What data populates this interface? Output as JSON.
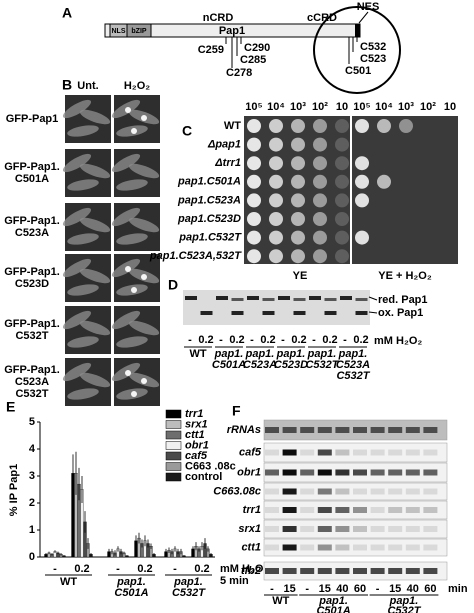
{
  "panel_labels": [
    "A",
    "B",
    "C",
    "D",
    "E",
    "F"
  ],
  "panel_a": {
    "protein": "Pap1",
    "nls": "NLS",
    "bzip": "bZIP",
    "ncrd": "nCRD",
    "ccrd": "cCRD",
    "nes": "NES",
    "cys_n": [
      "C259",
      "C290",
      "C285",
      "C278"
    ],
    "cys_c": [
      "C532",
      "C523",
      "C501"
    ]
  },
  "panel_b": {
    "columns": [
      "Unt.",
      "H₂O₂"
    ],
    "rows": [
      [
        "GFP-Pap1"
      ],
      [
        "GFP-Pap1.",
        "C501A"
      ],
      [
        "GFP-Pap1.",
        "C523A"
      ],
      [
        "GFP-Pap1.",
        "C523D"
      ],
      [
        "GFP-Pap1.",
        "C532T"
      ],
      [
        "GFP-Pap1.",
        "C523A",
        "C532T"
      ]
    ]
  },
  "panel_c": {
    "dilutions": [
      "10⁵",
      "10⁴",
      "10³",
      "10²",
      "10"
    ],
    "strains": [
      "WT",
      "Δpap1",
      "Δtrr1",
      "pap1.C501A",
      "pap1.C523A",
      "pap1.C523D",
      "pap1.C532T",
      "pap1.C523A,532T"
    ],
    "media": [
      "YE",
      "YE + H₂O₂"
    ]
  },
  "panel_d": {
    "bands": [
      "red. Pap1",
      "ox. Pap1"
    ],
    "doses": [
      "-",
      "0.2"
    ],
    "unit": "mM H₂O₂",
    "strains": [
      [
        "WT"
      ],
      [
        "pap1.",
        "C501A"
      ],
      [
        "pap1.",
        "C523A"
      ],
      [
        "pap1.",
        "C523D"
      ],
      [
        "pap1.",
        "C532T"
      ],
      [
        "pap1.",
        "C523A",
        "C532T"
      ]
    ]
  },
  "panel_f": {
    "rows": [
      "rRNAs",
      "caf5",
      "obr1",
      "C663.08c",
      "trr1",
      "srx1",
      "ctt1",
      "tfb2"
    ],
    "times": [
      "-",
      "15",
      "-",
      "15",
      "40",
      "60",
      "-",
      "15",
      "40",
      "60"
    ],
    "unit": "min",
    "strains": [
      [
        "WT"
      ],
      [
        "pap1.",
        "C501A"
      ],
      [
        "pap1.",
        "C532T"
      ]
    ]
  },
  "chart_data": {
    "type": "bar",
    "ylabel": "% IP Pap1",
    "categories": [
      "-",
      "0.2",
      "-",
      "0.2",
      "-",
      "0.2"
    ],
    "groups": [
      [
        "WT"
      ],
      [
        "pap1.",
        "C501A"
      ],
      [
        "pap1.",
        "C532T"
      ]
    ],
    "x_note": [
      "mM H₂O₂",
      "5 min"
    ],
    "ylim": [
      0,
      5
    ],
    "yticks": [
      0,
      1,
      2,
      3,
      4,
      5
    ],
    "series": [
      {
        "name": "trr1",
        "color": "#000000",
        "values": [
          0.1,
          3.1,
          0.2,
          0.6,
          0.2,
          0.3
        ],
        "errors": [
          0.05,
          0.7,
          0.1,
          0.2,
          0.1,
          0.1
        ]
      },
      {
        "name": "srx1",
        "color": "#bdbdbd",
        "values": [
          0.15,
          3.1,
          0.2,
          0.7,
          0.25,
          0.4
        ],
        "errors": [
          0.05,
          0.8,
          0.1,
          0.2,
          0.1,
          0.15
        ]
      },
      {
        "name": "ctt1",
        "color": "#6e6e6e",
        "values": [
          0.1,
          2.7,
          0.15,
          0.5,
          0.2,
          0.3
        ],
        "errors": [
          0.05,
          0.6,
          0.1,
          0.15,
          0.1,
          0.1
        ]
      },
      {
        "name": "obr1",
        "color": "#f0f0f0",
        "values": [
          0.2,
          2.5,
          0.3,
          0.6,
          0.3,
          0.4
        ],
        "errors": [
          0.05,
          0.5,
          0.1,
          0.2,
          0.1,
          0.15
        ]
      },
      {
        "name": "caf5",
        "color": "#4a4a4a",
        "values": [
          0.15,
          1.3,
          0.2,
          0.5,
          0.2,
          0.5
        ],
        "errors": [
          0.05,
          0.4,
          0.1,
          0.15,
          0.1,
          0.2
        ]
      },
      {
        "name": "C663 .08c",
        "color": "#9a9a9a",
        "values": [
          0.1,
          0.5,
          0.15,
          0.4,
          0.2,
          0.3
        ],
        "errors": [
          0.05,
          0.2,
          0.05,
          0.1,
          0.1,
          0.1
        ]
      },
      {
        "name": "control",
        "color": "#1a1a1a",
        "values": [
          0.05,
          0.1,
          0.05,
          0.1,
          0.05,
          0.1
        ],
        "errors": [
          0.02,
          0.05,
          0.02,
          0.05,
          0.02,
          0.05
        ]
      }
    ]
  }
}
